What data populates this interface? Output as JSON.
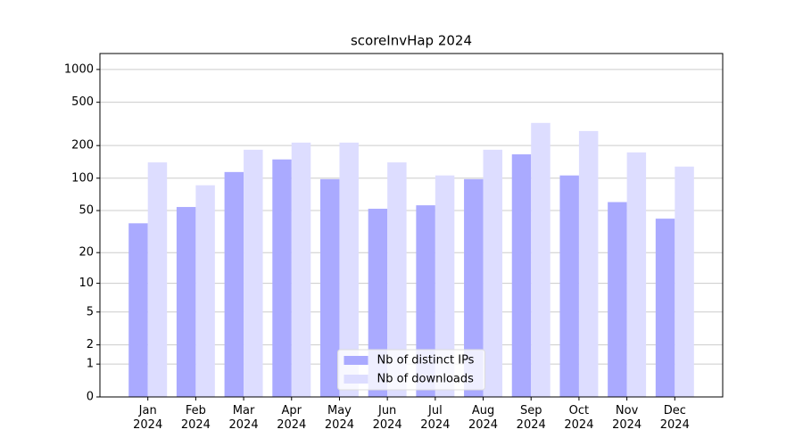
{
  "chart_data": {
    "type": "bar",
    "title": "scoreInvHap 2024",
    "categories": [
      "Jan\n2024",
      "Feb\n2024",
      "Mar\n2024",
      "Apr\n2024",
      "May\n2024",
      "Jun\n2024",
      "Jul\n2024",
      "Aug\n2024",
      "Sep\n2024",
      "Oct\n2024",
      "Nov\n2024",
      "Dec\n2024"
    ],
    "series": [
      {
        "name": "Nb of distinct IPs",
        "color": "#aaaaff",
        "values": [
          38,
          54,
          114,
          149,
          98,
          52,
          56,
          98,
          166,
          106,
          60,
          42
        ]
      },
      {
        "name": "Nb of downloads",
        "color": "#ddddff",
        "values": [
          140,
          86,
          183,
          213,
          213,
          140,
          106,
          183,
          323,
          272,
          173,
          128
        ]
      }
    ],
    "yscale": "log1p",
    "ylim": [
      0,
      1400
    ],
    "yticks": [
      0,
      1,
      2,
      5,
      10,
      20,
      50,
      100,
      200,
      500,
      1000
    ],
    "grid": true,
    "legend": "lower center"
  }
}
